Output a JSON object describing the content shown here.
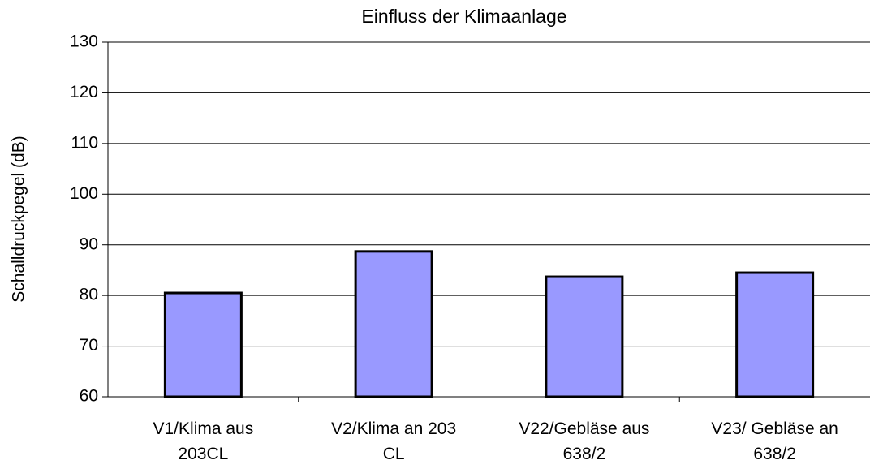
{
  "chart_data": {
    "type": "bar",
    "title": "Einfluss der Klimaanlage",
    "y_label": "Schalldruckpegel (dB)",
    "categories": [
      "V1/Klima aus\n203CL",
      "V2/Klima an 203\nCL",
      "V22/Gebläse aus\n638/2",
      "V23/ Gebläse an\n638/2"
    ],
    "values": [
      80.5,
      88.7,
      83.7,
      84.5
    ],
    "color": "#9999ff",
    "ylim": [
      60,
      130
    ],
    "yticks": [
      60,
      70,
      80,
      90,
      100,
      110,
      120,
      130
    ],
    "grid": true
  }
}
